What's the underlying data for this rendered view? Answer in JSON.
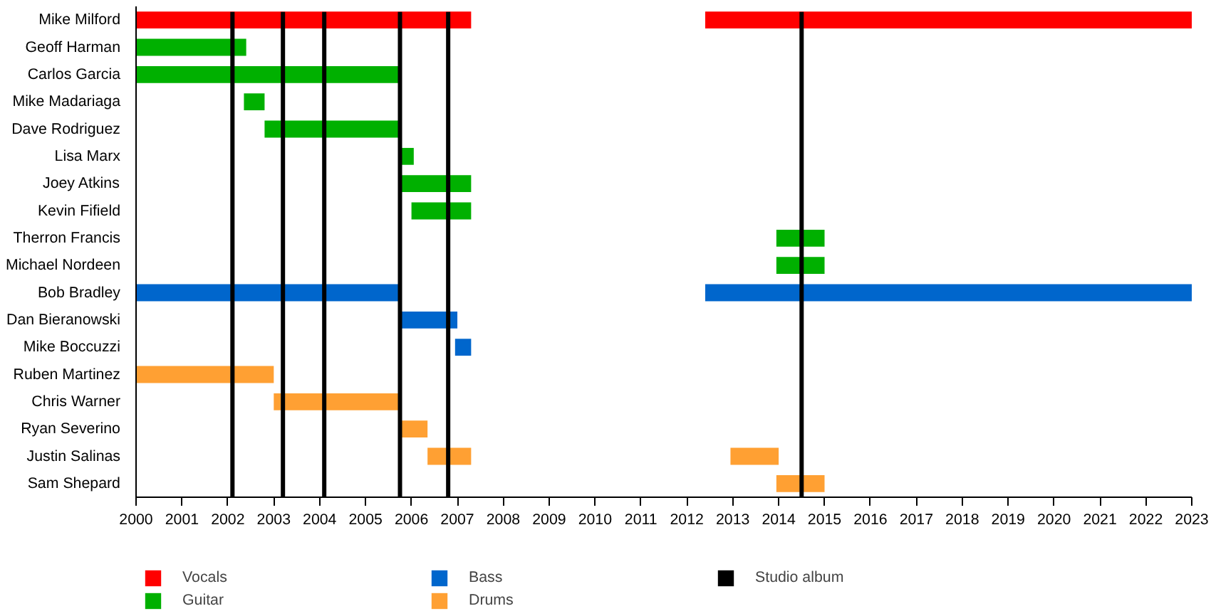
{
  "chart_data": {
    "type": "bar",
    "orientation": "horizontal",
    "categories": [
      "Mike Milford",
      "Geoff Harman",
      "Carlos Garcia",
      "Mike Madariaga",
      "Dave Rodriguez",
      "Lisa Marx",
      "Joey Atkins",
      "Kevin Fifield",
      "Therron Francis",
      "Michael Nordeen",
      "Bob Bradley",
      "Dan Bieranowski",
      "Mike Boccuzzi",
      "Ruben Martinez",
      "Chris Warner",
      "Ryan Severino",
      "Justin Salinas",
      "Sam Shepard"
    ],
    "series": [
      {
        "name": "Vocals",
        "color": "#ff0000",
        "base": [
          2000,
          null,
          null,
          null,
          null,
          null,
          null,
          null,
          null,
          null,
          null,
          null,
          null,
          null,
          null,
          null,
          null,
          null
        ],
        "values": [
          7.3,
          null,
          null,
          null,
          null,
          null,
          null,
          null,
          null,
          null,
          null,
          null,
          null,
          null,
          null,
          null,
          null,
          null
        ]
      },
      {
        "color": "#ff0000",
        "base": [
          2012.4,
          null,
          null,
          null,
          null,
          null,
          null,
          null,
          null,
          null,
          null,
          null,
          null,
          null,
          null,
          null,
          null,
          null
        ],
        "values": [
          10.6,
          null,
          null,
          null,
          null,
          null,
          null,
          null,
          null,
          null,
          null,
          null,
          null,
          null,
          null,
          null,
          null,
          null
        ]
      },
      {
        "name": "Guitar",
        "color": "#00b000",
        "base": [
          null,
          2000,
          2000,
          2002.35,
          2002.8,
          2005.75,
          2005.75,
          2006.0,
          2013.95,
          2013.95,
          null,
          null,
          null,
          null,
          null,
          null,
          null,
          null
        ],
        "values": [
          null,
          2.4,
          5.75,
          0.45,
          2.95,
          0.3,
          1.55,
          1.3,
          1.05,
          1.05,
          null,
          null,
          null,
          null,
          null,
          null,
          null,
          null
        ]
      },
      {
        "name": "Bass",
        "color": "#0066cc",
        "base": [
          null,
          null,
          null,
          null,
          null,
          null,
          null,
          null,
          null,
          null,
          2000,
          2005.75,
          2006.95,
          null,
          null,
          null,
          null,
          null
        ],
        "values": [
          null,
          null,
          null,
          null,
          null,
          null,
          null,
          null,
          null,
          null,
          5.75,
          1.25,
          0.35,
          null,
          null,
          null,
          null,
          null
        ]
      },
      {
        "color": "#0066cc",
        "base": [
          null,
          null,
          null,
          null,
          null,
          null,
          null,
          null,
          null,
          null,
          2012.4,
          null,
          null,
          null,
          null,
          null,
          null,
          null
        ],
        "values": [
          null,
          null,
          null,
          null,
          null,
          null,
          null,
          null,
          null,
          null,
          10.6,
          null,
          null,
          null,
          null,
          null,
          null,
          null
        ]
      },
      {
        "name": "Drums",
        "color": "#ffa033",
        "base": [
          null,
          null,
          null,
          null,
          null,
          null,
          null,
          null,
          null,
          null,
          null,
          null,
          null,
          2000,
          2003.0,
          2005.75,
          2006.35,
          2013.95
        ],
        "values": [
          null,
          null,
          null,
          null,
          null,
          null,
          null,
          null,
          null,
          null,
          null,
          null,
          null,
          3.0,
          2.75,
          0.6,
          0.95,
          1.05
        ]
      },
      {
        "color": "#ffa033",
        "base": [
          null,
          null,
          null,
          null,
          null,
          null,
          null,
          null,
          null,
          null,
          null,
          null,
          null,
          null,
          null,
          null,
          2012.95,
          null
        ],
        "values": [
          null,
          null,
          null,
          null,
          null,
          null,
          null,
          null,
          null,
          null,
          null,
          null,
          null,
          null,
          null,
          null,
          1.05,
          null
        ]
      }
    ],
    "ref_lines": [
      {
        "axis": "x",
        "value": 2002.1,
        "label": "Studio album",
        "color": "#000000"
      },
      {
        "axis": "x",
        "value": 2003.2,
        "color": "#000000"
      },
      {
        "axis": "x",
        "value": 2004.1,
        "color": "#000000"
      },
      {
        "axis": "x",
        "value": 2005.75,
        "color": "#000000"
      },
      {
        "axis": "x",
        "value": 2006.8,
        "color": "#000000"
      },
      {
        "axis": "x",
        "value": 2014.5,
        "color": "#000000"
      }
    ],
    "xlim": [
      2000,
      2023
    ],
    "xticks": [
      2000,
      2001,
      2002,
      2003,
      2004,
      2005,
      2006,
      2007,
      2008,
      2009,
      2010,
      2011,
      2012,
      2013,
      2014,
      2015,
      2016,
      2017,
      2018,
      2019,
      2020,
      2021,
      2022,
      2023
    ],
    "grid": false,
    "legend": "bottom"
  }
}
